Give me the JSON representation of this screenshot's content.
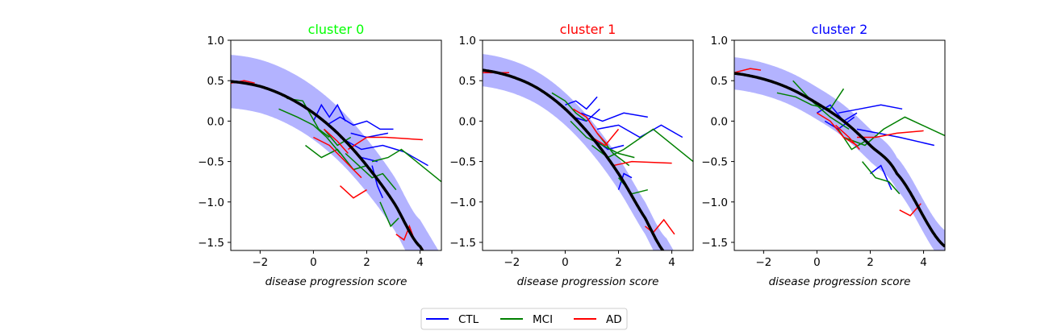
{
  "chart_data": {
    "type": "line",
    "xlabel": "disease progression score",
    "xlim": [
      -3.1,
      4.8
    ],
    "ylim": [
      -1.6,
      1.0
    ],
    "xticks": [
      -2,
      0,
      2,
      4
    ],
    "yticks": [
      1.0,
      0.5,
      0.0,
      -0.5,
      -1.0,
      -1.5
    ],
    "ytick_labels": [
      "1.0",
      "0.5",
      "0.0",
      "−0.5",
      "−1.0",
      "−1.5"
    ],
    "xtick_labels": [
      "−2",
      "0",
      "2",
      "4"
    ],
    "legend": {
      "placement": "bottom-center",
      "entries": [
        {
          "label": "CTL",
          "color": "#0000ff"
        },
        {
          "label": "MCI",
          "color": "#008000"
        },
        {
          "label": "AD",
          "color": "#ff0000"
        }
      ]
    },
    "panels": [
      {
        "title": "cluster 0",
        "title_color": "#00ff00",
        "fit_curve": {
          "color": "#000000",
          "band_color": "#b3b3ff",
          "x": [
            -3.1,
            -2,
            -1,
            0,
            1,
            2,
            3,
            4
          ],
          "y": [
            0.49,
            0.43,
            0.3,
            0.1,
            -0.18,
            -0.55,
            -1.0,
            -1.55
          ],
          "band_width": 0.33
        },
        "trajectories": [
          {
            "group": "CTL",
            "x": [
              0,
              0.3,
              0.6,
              0.9,
              1.2
            ],
            "y": [
              0.0,
              0.2,
              0.05,
              0.2,
              0.0
            ]
          },
          {
            "group": "CTL",
            "x": [
              0.5,
              1.0,
              1.5,
              2.0,
              2.5,
              3.0
            ],
            "y": [
              -0.05,
              0.05,
              -0.05,
              0.0,
              -0.1,
              -0.1
            ]
          },
          {
            "group": "CTL",
            "x": [
              1.0,
              1.8,
              2.6,
              3.4,
              4.3
            ],
            "y": [
              -0.2,
              -0.35,
              -0.3,
              -0.38,
              -0.55
            ]
          },
          {
            "group": "CTL",
            "x": [
              0.8,
              1.2,
              1.8,
              2.4
            ],
            "y": [
              -0.1,
              -0.25,
              -0.45,
              -0.5
            ]
          },
          {
            "group": "CTL",
            "x": [
              2.2,
              2.4,
              2.6
            ],
            "y": [
              -0.55,
              -0.8,
              -0.95
            ]
          },
          {
            "group": "CTL",
            "x": [
              1.4,
              2.0,
              2.8
            ],
            "y": [
              -0.15,
              -0.2,
              -0.15
            ]
          },
          {
            "group": "MCI",
            "x": [
              -1.0,
              -0.4,
              0.2,
              0.6
            ],
            "y": [
              0.28,
              0.25,
              -0.1,
              -0.2
            ]
          },
          {
            "group": "MCI",
            "x": [
              -1.3,
              -0.6,
              0,
              0.5,
              1.0
            ],
            "y": [
              0.15,
              0.05,
              -0.05,
              -0.2,
              -0.4
            ]
          },
          {
            "group": "MCI",
            "x": [
              -0.3,
              0.3,
              0.9,
              1.5,
              2.0
            ],
            "y": [
              -0.3,
              -0.45,
              -0.35,
              -0.6,
              -0.55
            ]
          },
          {
            "group": "MCI",
            "x": [
              1.2,
              1.7,
              2.2,
              2.6,
              3.1
            ],
            "y": [
              -0.4,
              -0.55,
              -0.7,
              -0.65,
              -0.85
            ]
          },
          {
            "group": "MCI",
            "x": [
              2.2,
              2.8,
              3.3,
              4.8
            ],
            "y": [
              -0.5,
              -0.45,
              -0.35,
              -0.75
            ]
          },
          {
            "group": "MCI",
            "x": [
              2.5,
              2.9,
              3.2
            ],
            "y": [
              -1.0,
              -1.3,
              -1.2
            ]
          },
          {
            "group": "MCI",
            "x": [
              0.4,
              0.9,
              1.4
            ],
            "y": [
              -0.1,
              -0.3,
              -0.2
            ]
          },
          {
            "group": "AD",
            "x": [
              -3.1,
              -2.6,
              -2.2
            ],
            "y": [
              0.47,
              0.5,
              0.47
            ]
          },
          {
            "group": "AD",
            "x": [
              0,
              0.6,
              1.2,
              1.8
            ],
            "y": [
              -0.2,
              -0.3,
              -0.5,
              -0.7
            ]
          },
          {
            "group": "AD",
            "x": [
              1.0,
              1.5,
              2.0
            ],
            "y": [
              -0.8,
              -0.95,
              -0.85
            ]
          },
          {
            "group": "AD",
            "x": [
              1.3,
              2.0,
              2.7,
              4.1
            ],
            "y": [
              -0.35,
              -0.2,
              -0.2,
              -0.23
            ]
          },
          {
            "group": "AD",
            "x": [
              3.1,
              3.4,
              3.6,
              3.8,
              4.1
            ],
            "y": [
              -1.4,
              -1.47,
              -1.3,
              -1.48,
              -1.58
            ]
          },
          {
            "group": "AD",
            "x": [
              0.4,
              0.9,
              1.3
            ],
            "y": [
              -0.1,
              -0.25,
              -0.4
            ]
          }
        ]
      },
      {
        "title": "cluster 1",
        "title_color": "#ff0000",
        "fit_curve": {
          "color": "#000000",
          "band_color": "#b3b3ff",
          "x": [
            -3.1,
            -2,
            -1,
            0,
            1,
            2,
            3,
            3.8
          ],
          "y": [
            0.63,
            0.55,
            0.4,
            0.15,
            -0.2,
            -0.65,
            -1.2,
            -1.65
          ],
          "band_width": 0.2
        },
        "trajectories": [
          {
            "group": "CTL",
            "x": [
              0,
              0.4,
              0.8,
              1.2
            ],
            "y": [
              0.2,
              0.25,
              0.15,
              0.3
            ]
          },
          {
            "group": "CTL",
            "x": [
              0.6,
              1.4,
              2.2,
              3.1
            ],
            "y": [
              0.1,
              0.0,
              0.1,
              0.05
            ]
          },
          {
            "group": "CTL",
            "x": [
              1.2,
              2.0,
              2.8,
              3.6,
              4.4
            ],
            "y": [
              -0.1,
              -0.05,
              -0.2,
              -0.05,
              -0.2
            ]
          },
          {
            "group": "CTL",
            "x": [
              1.0,
              1.6,
              2.2
            ],
            "y": [
              -0.2,
              -0.35,
              -0.3
            ]
          },
          {
            "group": "CTL",
            "x": [
              2.0,
              2.2,
              2.5
            ],
            "y": [
              -0.85,
              -0.65,
              -0.7
            ]
          },
          {
            "group": "CTL",
            "x": [
              0.3,
              0.8,
              1.3
            ],
            "y": [
              0.05,
              0.0,
              0.15
            ]
          },
          {
            "group": "MCI",
            "x": [
              -0.5,
              0,
              0.4,
              0.8
            ],
            "y": [
              0.35,
              0.25,
              0.1,
              0.0
            ]
          },
          {
            "group": "MCI",
            "x": [
              0.2,
              0.8,
              1.4,
              2.0,
              2.6
            ],
            "y": [
              0.0,
              -0.2,
              -0.3,
              -0.4,
              -0.45
            ]
          },
          {
            "group": "MCI",
            "x": [
              1.0,
              1.6,
              2.2,
              3.3,
              4.8
            ],
            "y": [
              -0.3,
              -0.45,
              -0.35,
              -0.1,
              -0.5
            ]
          },
          {
            "group": "MCI",
            "x": [
              2.0,
              2.5,
              3.1
            ],
            "y": [
              -0.7,
              -0.9,
              -0.85
            ]
          },
          {
            "group": "MCI",
            "x": [
              1.2,
              1.8,
              2.4
            ],
            "y": [
              -0.15,
              -0.4,
              -0.55
            ]
          },
          {
            "group": "AD",
            "x": [
              -3.1,
              -2.5,
              -2.1
            ],
            "y": [
              0.6,
              0.6,
              0.6
            ]
          },
          {
            "group": "AD",
            "x": [
              0.3,
              0.8,
              1.2,
              1.6
            ],
            "y": [
              0.15,
              0.05,
              -0.15,
              -0.3
            ]
          },
          {
            "group": "AD",
            "x": [
              1.8,
              2.5,
              4.0
            ],
            "y": [
              -0.55,
              -0.5,
              -0.52
            ]
          },
          {
            "group": "AD",
            "x": [
              3.0,
              3.3,
              3.7,
              4.1
            ],
            "y": [
              -1.3,
              -1.38,
              -1.22,
              -1.4
            ]
          },
          {
            "group": "AD",
            "x": [
              1.0,
              1.5,
              2.0
            ],
            "y": [
              -0.2,
              -0.3,
              -0.1
            ]
          }
        ]
      },
      {
        "title": "cluster 2",
        "title_color": "#0000ff",
        "fit_curve": {
          "color": "#000000",
          "band_color": "#b3b3ff",
          "x": [
            -3.1,
            -2,
            -1,
            0,
            1,
            2,
            3,
            4.8
          ],
          "y": [
            0.59,
            0.52,
            0.4,
            0.22,
            0.0,
            -0.3,
            -0.65,
            -1.55
          ],
          "band_width": 0.2
        },
        "trajectories": [
          {
            "group": "CTL",
            "x": [
              0,
              0.5,
              1.0,
              1.5
            ],
            "y": [
              0.1,
              0.2,
              0.0,
              0.1
            ]
          },
          {
            "group": "CTL",
            "x": [
              0.8,
              1.6,
              2.4,
              3.2
            ],
            "y": [
              0.1,
              0.15,
              0.2,
              0.15
            ]
          },
          {
            "group": "CTL",
            "x": [
              1.5,
              2.3,
              3.1,
              4.4
            ],
            "y": [
              -0.1,
              -0.15,
              -0.2,
              -0.3
            ]
          },
          {
            "group": "CTL",
            "x": [
              2.0,
              2.4,
              2.8
            ],
            "y": [
              -0.65,
              -0.55,
              -0.85
            ]
          },
          {
            "group": "CTL",
            "x": [
              0.3,
              0.8,
              1.4
            ],
            "y": [
              0.0,
              -0.1,
              0.05
            ]
          },
          {
            "group": "MCI",
            "x": [
              -1.5,
              -0.8,
              -0.2,
              0.5,
              1.0
            ],
            "y": [
              0.35,
              0.3,
              0.2,
              0.15,
              0.4
            ]
          },
          {
            "group": "MCI",
            "x": [
              -0.9,
              -0.2,
              0.5,
              1.2
            ],
            "y": [
              0.5,
              0.25,
              0.05,
              -0.1
            ]
          },
          {
            "group": "MCI",
            "x": [
              1.0,
              1.8,
              2.5,
              3.3,
              4.8
            ],
            "y": [
              -0.2,
              -0.3,
              -0.1,
              0.05,
              -0.18
            ]
          },
          {
            "group": "MCI",
            "x": [
              1.7,
              2.2,
              2.7,
              3.1
            ],
            "y": [
              -0.5,
              -0.7,
              -0.75,
              -0.9
            ]
          },
          {
            "group": "MCI",
            "x": [
              0.8,
              1.3,
              1.8
            ],
            "y": [
              -0.1,
              -0.35,
              -0.25
            ]
          },
          {
            "group": "AD",
            "x": [
              -3.1,
              -2.5,
              -2.1
            ],
            "y": [
              0.6,
              0.65,
              0.63
            ]
          },
          {
            "group": "AD",
            "x": [
              0.0,
              0.5,
              1.0,
              1.5
            ],
            "y": [
              0.1,
              0.0,
              -0.2,
              -0.3
            ]
          },
          {
            "group": "AD",
            "x": [
              1.5,
              2.2,
              3.0,
              4.0
            ],
            "y": [
              -0.2,
              -0.2,
              -0.15,
              -0.12
            ]
          },
          {
            "group": "AD",
            "x": [
              3.1,
              3.5,
              3.9
            ],
            "y": [
              -1.1,
              -1.17,
              -1.02
            ]
          },
          {
            "group": "AD",
            "x": [
              0.7,
              1.2,
              1.6
            ],
            "y": [
              -0.05,
              -0.2,
              -0.35
            ]
          }
        ]
      }
    ]
  }
}
